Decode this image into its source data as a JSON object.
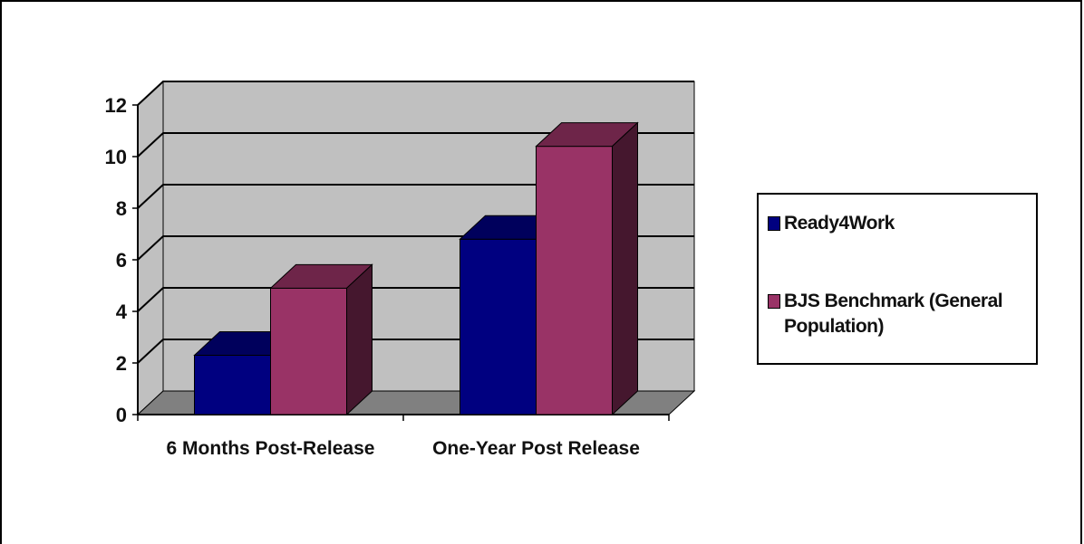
{
  "chart_data": {
    "type": "bar",
    "style": "3d-clustered-column",
    "categories": [
      "6 Months Post-Release",
      "One-Year Post Release"
    ],
    "series": [
      {
        "name": "Ready4Work",
        "values": [
          2.3,
          6.8
        ],
        "color": "#000080"
      },
      {
        "name": "BJS Benchmark (General Population)",
        "values": [
          4.9,
          10.4
        ],
        "color": "#993366"
      }
    ],
    "ylim": [
      0,
      12
    ],
    "yticks": [
      0,
      2,
      4,
      6,
      8,
      10,
      12
    ],
    "grid": true,
    "legend_position": "right",
    "title": "",
    "xlabel": "",
    "ylabel": "",
    "colors": {
      "wall": "#c0c0c0",
      "floor": "#808080",
      "gridline": "#000000"
    }
  }
}
